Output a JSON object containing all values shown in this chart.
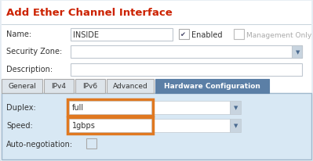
{
  "title": "Add Ether Channel Interface",
  "title_color": "#cc2200",
  "bg_color": "#e8eef4",
  "dialog_bg": "#e8eef4",
  "white": "#ffffff",
  "outer_border_color": "#a0c4d8",
  "panel_bg": "#d8e8f4",
  "tab_bg_active": "#5b7fa6",
  "tab_bg_inactive": "#dde4ea",
  "tab_border": "#aaaaaa",
  "tab_active_text": "#ffffff",
  "tab_inactive_text": "#333333",
  "tabs": [
    "General",
    "IPv4",
    "IPv6",
    "Advanced",
    "Hardware Configuration"
  ],
  "active_tab": 4,
  "enabled_label": "Enabled",
  "management_label": "Management Only",
  "duplex_label": "Duplex:",
  "duplex_value": "full",
  "speed_label": "Speed:",
  "speed_value": "1gbps",
  "autoneg_label": "Auto-negotiation:",
  "highlight_color": "#e07820",
  "input_bg": "#ffffff",
  "input_border": "#c0c8d0",
  "dropdown_arrow_bg": "#c8d4df",
  "dropdown_arrow_color": "#4a6a90",
  "text_color": "#333333",
  "section_line_color": "#a0b8cc",
  "check_color": "#444466"
}
